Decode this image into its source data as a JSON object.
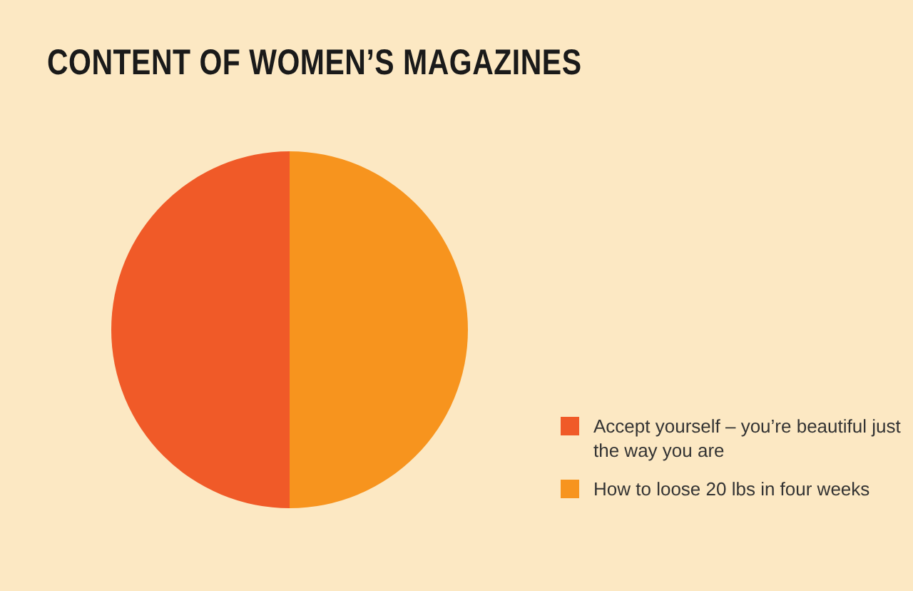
{
  "chart_data": {
    "type": "pie",
    "title": "CONTENT OF WOMEN’S MAGAZINES",
    "categories": [
      "Accept yourself – you’re beautiful just the way you are",
      "How to loose 20 lbs in four weeks"
    ],
    "values": [
      50,
      50
    ],
    "colors": [
      "#f05a28",
      "#f7941e"
    ],
    "legend": "bottom right"
  }
}
